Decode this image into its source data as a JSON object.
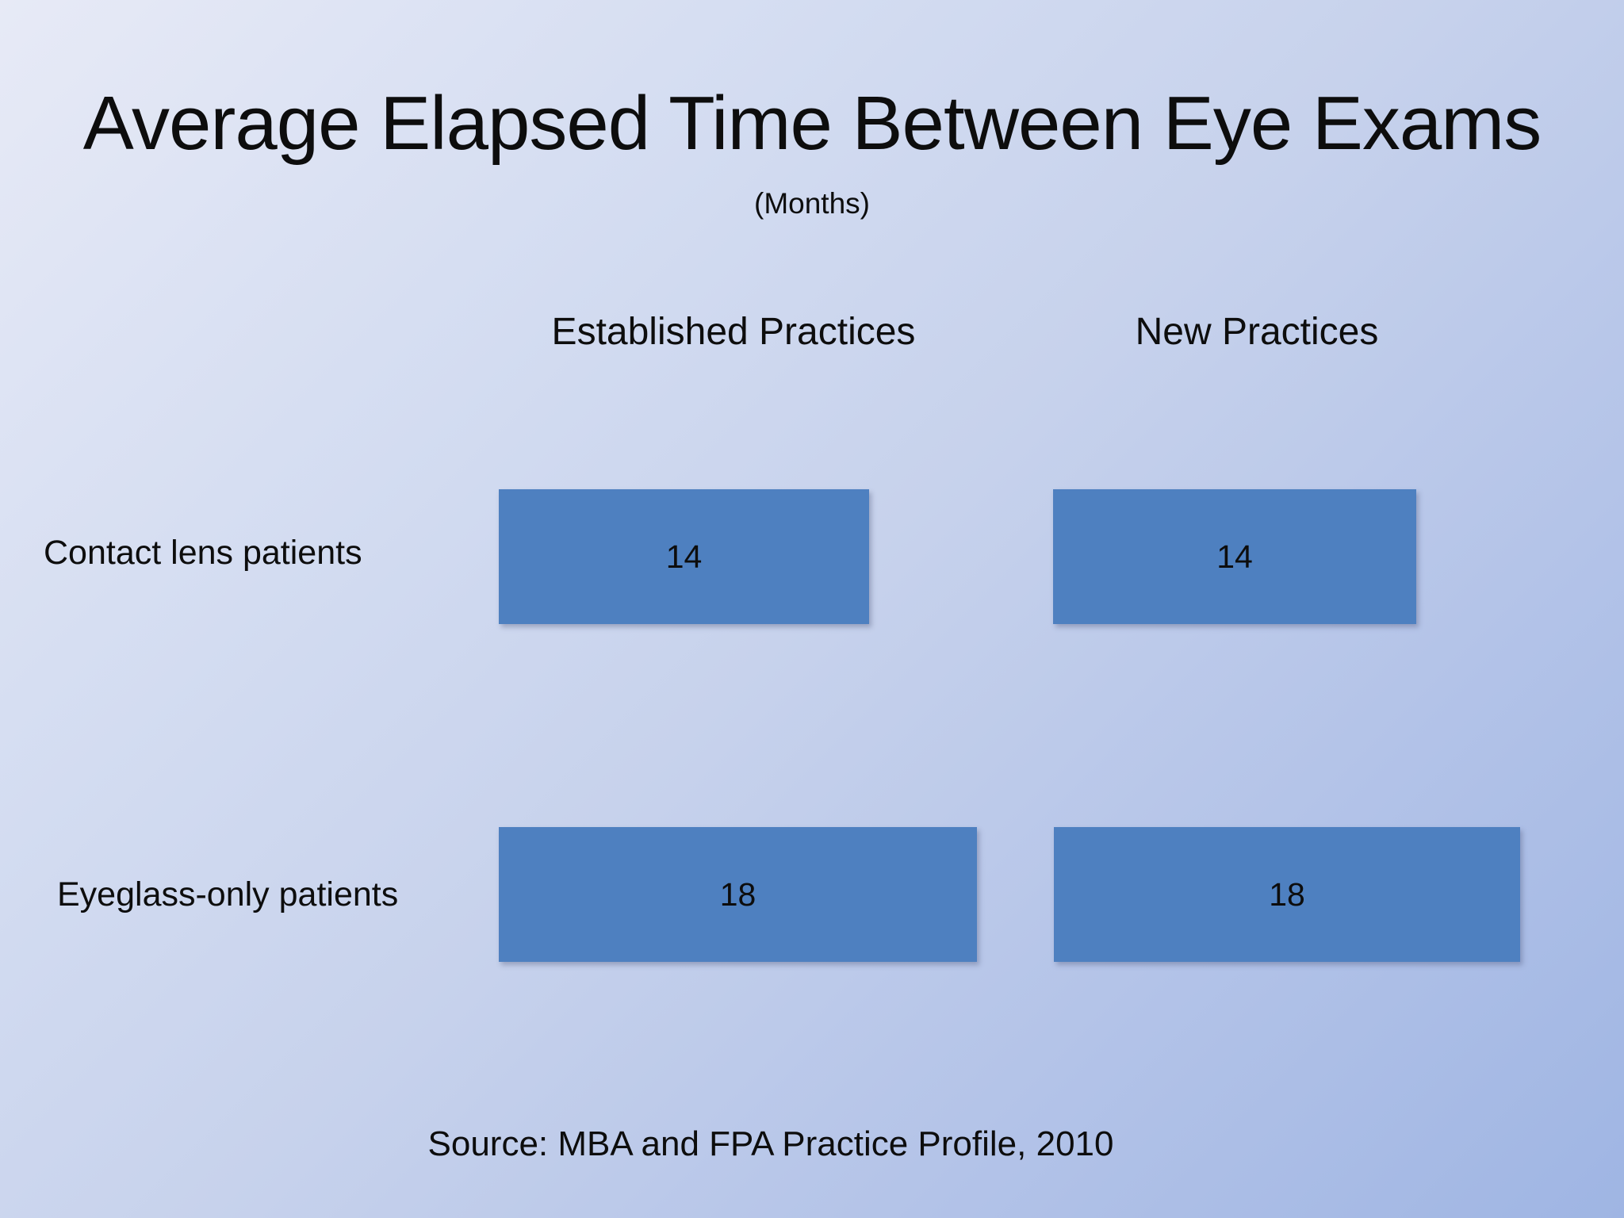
{
  "chart_data": {
    "type": "bar",
    "orientation": "horizontal",
    "title": "Average Elapsed Time Between Eye Exams",
    "subtitle": "(Months)",
    "unit": "months",
    "categories": [
      "Contact lens patients",
      "Eyeglass-only patients"
    ],
    "series": [
      {
        "name": "Established Practices",
        "values": [
          14,
          18
        ]
      },
      {
        "name": "New Practices",
        "values": [
          14,
          18
        ]
      }
    ],
    "xlim": [
      0,
      18
    ],
    "value_labels": true,
    "grid": false,
    "legend_position": "column-headers",
    "source": "Source: MBA and FPA Practice Profile, 2010",
    "colors": {
      "bar": "#4e80c0",
      "text": "#0d0d0d",
      "background_gradient_start": "#e7eaf6",
      "background_gradient_end": "#9fb5e3"
    }
  }
}
